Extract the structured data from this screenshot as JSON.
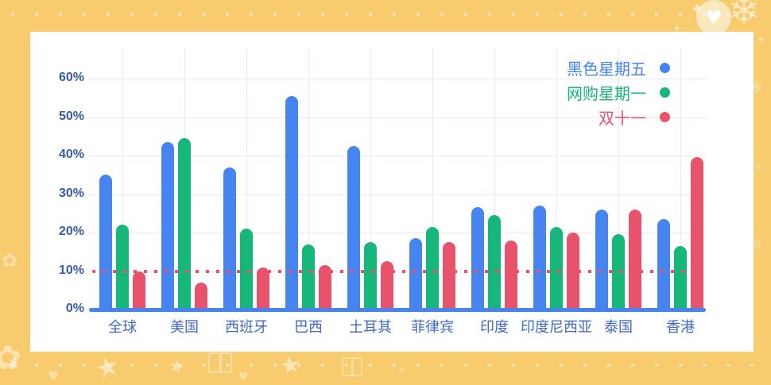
{
  "frame": {
    "background_color": "#F7CB6E",
    "card_background_color": "#FFFFFF"
  },
  "chart_data": {
    "type": "bar",
    "title": "",
    "categories": [
      "全球",
      "美国",
      "西班牙",
      "巴西",
      "土耳其",
      "菲律宾",
      "印度",
      "印度尼西亚",
      "泰国",
      "香港"
    ],
    "series": [
      {
        "name": "黑色星期五",
        "color": "#4584F1",
        "values": [
          35,
          43.5,
          37,
          55.5,
          42.5,
          18.5,
          26.5,
          27,
          26,
          23.5
        ]
      },
      {
        "name": "网购星期一",
        "color": "#17B67A",
        "values": [
          22,
          44.5,
          21,
          17,
          17.5,
          21.5,
          24.5,
          21.5,
          19.5,
          16.5
        ]
      },
      {
        "name": "双十一",
        "color": "#E8536B",
        "values": [
          10,
          7,
          11,
          11.5,
          12.5,
          17.5,
          18,
          20,
          26,
          39.5
        ]
      }
    ],
    "xlabel": "",
    "ylabel": "",
    "yticks": [
      "0%",
      "10%",
      "20%",
      "30%",
      "40%",
      "50%",
      "60%"
    ],
    "ylim": [
      0,
      65
    ],
    "grid": true,
    "legend_position": "top-right",
    "reference_line": {
      "value": 10,
      "style": "dotted",
      "color": "#E8536B"
    }
  },
  "style_colors": {
    "y_axis_label": "#3A5BA9",
    "x_axis_label": "#4169C9",
    "gridline": "#F6E4E7",
    "axis_line": "#4584F1"
  },
  "decorations": {
    "glyphs": {
      "snowflake-icon": "❄",
      "sparkle-icon": "✦",
      "star-icon": "★",
      "heart-icon": "♥",
      "flower-icon": "✿"
    },
    "heart_badge_glyph": "♥"
  }
}
